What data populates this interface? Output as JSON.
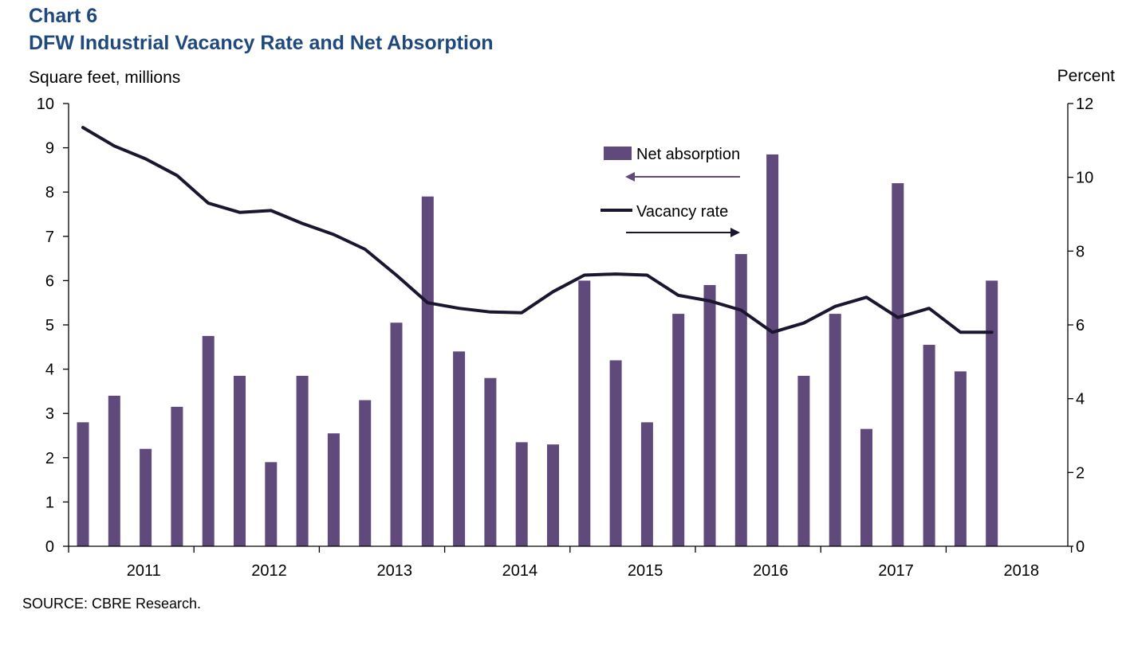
{
  "chart_number": "Chart 6",
  "title": "DFW Industrial Vacancy Rate and Net Absorption",
  "source": "SOURCE: CBRE Research.",
  "colors": {
    "title": "#1f497d",
    "bars": "#604a7b",
    "line": "#1c1530",
    "axis": "#000000"
  },
  "chart_data": {
    "type": "bar",
    "left_axis": {
      "label": "Square feet, millions",
      "range": [
        0,
        10
      ],
      "ticks": [
        "0",
        "1",
        "2",
        "3",
        "4",
        "5",
        "6",
        "7",
        "8",
        "9",
        "10"
      ]
    },
    "right_axis": {
      "label": "Percent",
      "range": [
        0,
        12
      ],
      "ticks": [
        "0",
        "2",
        "4",
        "6",
        "8",
        "10",
        "12"
      ]
    },
    "x_year_labels": [
      "2011",
      "2012",
      "2013",
      "2014",
      "2015",
      "2016",
      "2017",
      "2018"
    ],
    "quarters_start": "2010 Q4",
    "grid": false,
    "legend_placement": "top-center",
    "series": [
      {
        "name": "Net absorption",
        "type": "bar",
        "axis": "left",
        "values": [
          2.8,
          3.4,
          2.2,
          3.15,
          4.75,
          3.85,
          1.9,
          3.85,
          2.55,
          3.3,
          5.05,
          7.9,
          4.4,
          3.8,
          2.35,
          2.3,
          6.0,
          4.2,
          2.8,
          5.25,
          5.9,
          6.6,
          8.85,
          3.85,
          5.25,
          2.65,
          8.2,
          4.55,
          3.95,
          6.0
        ]
      },
      {
        "name": "Vacancy rate",
        "type": "line",
        "axis": "right",
        "values": [
          11.35,
          10.85,
          10.5,
          10.05,
          9.3,
          9.05,
          9.1,
          8.75,
          8.45,
          8.05,
          7.35,
          6.6,
          6.45,
          6.35,
          6.33,
          6.9,
          7.35,
          7.38,
          7.35,
          6.8,
          6.65,
          6.4,
          5.8,
          6.05,
          6.5,
          6.75,
          6.2,
          6.45,
          5.8,
          5.8
        ]
      }
    ]
  }
}
